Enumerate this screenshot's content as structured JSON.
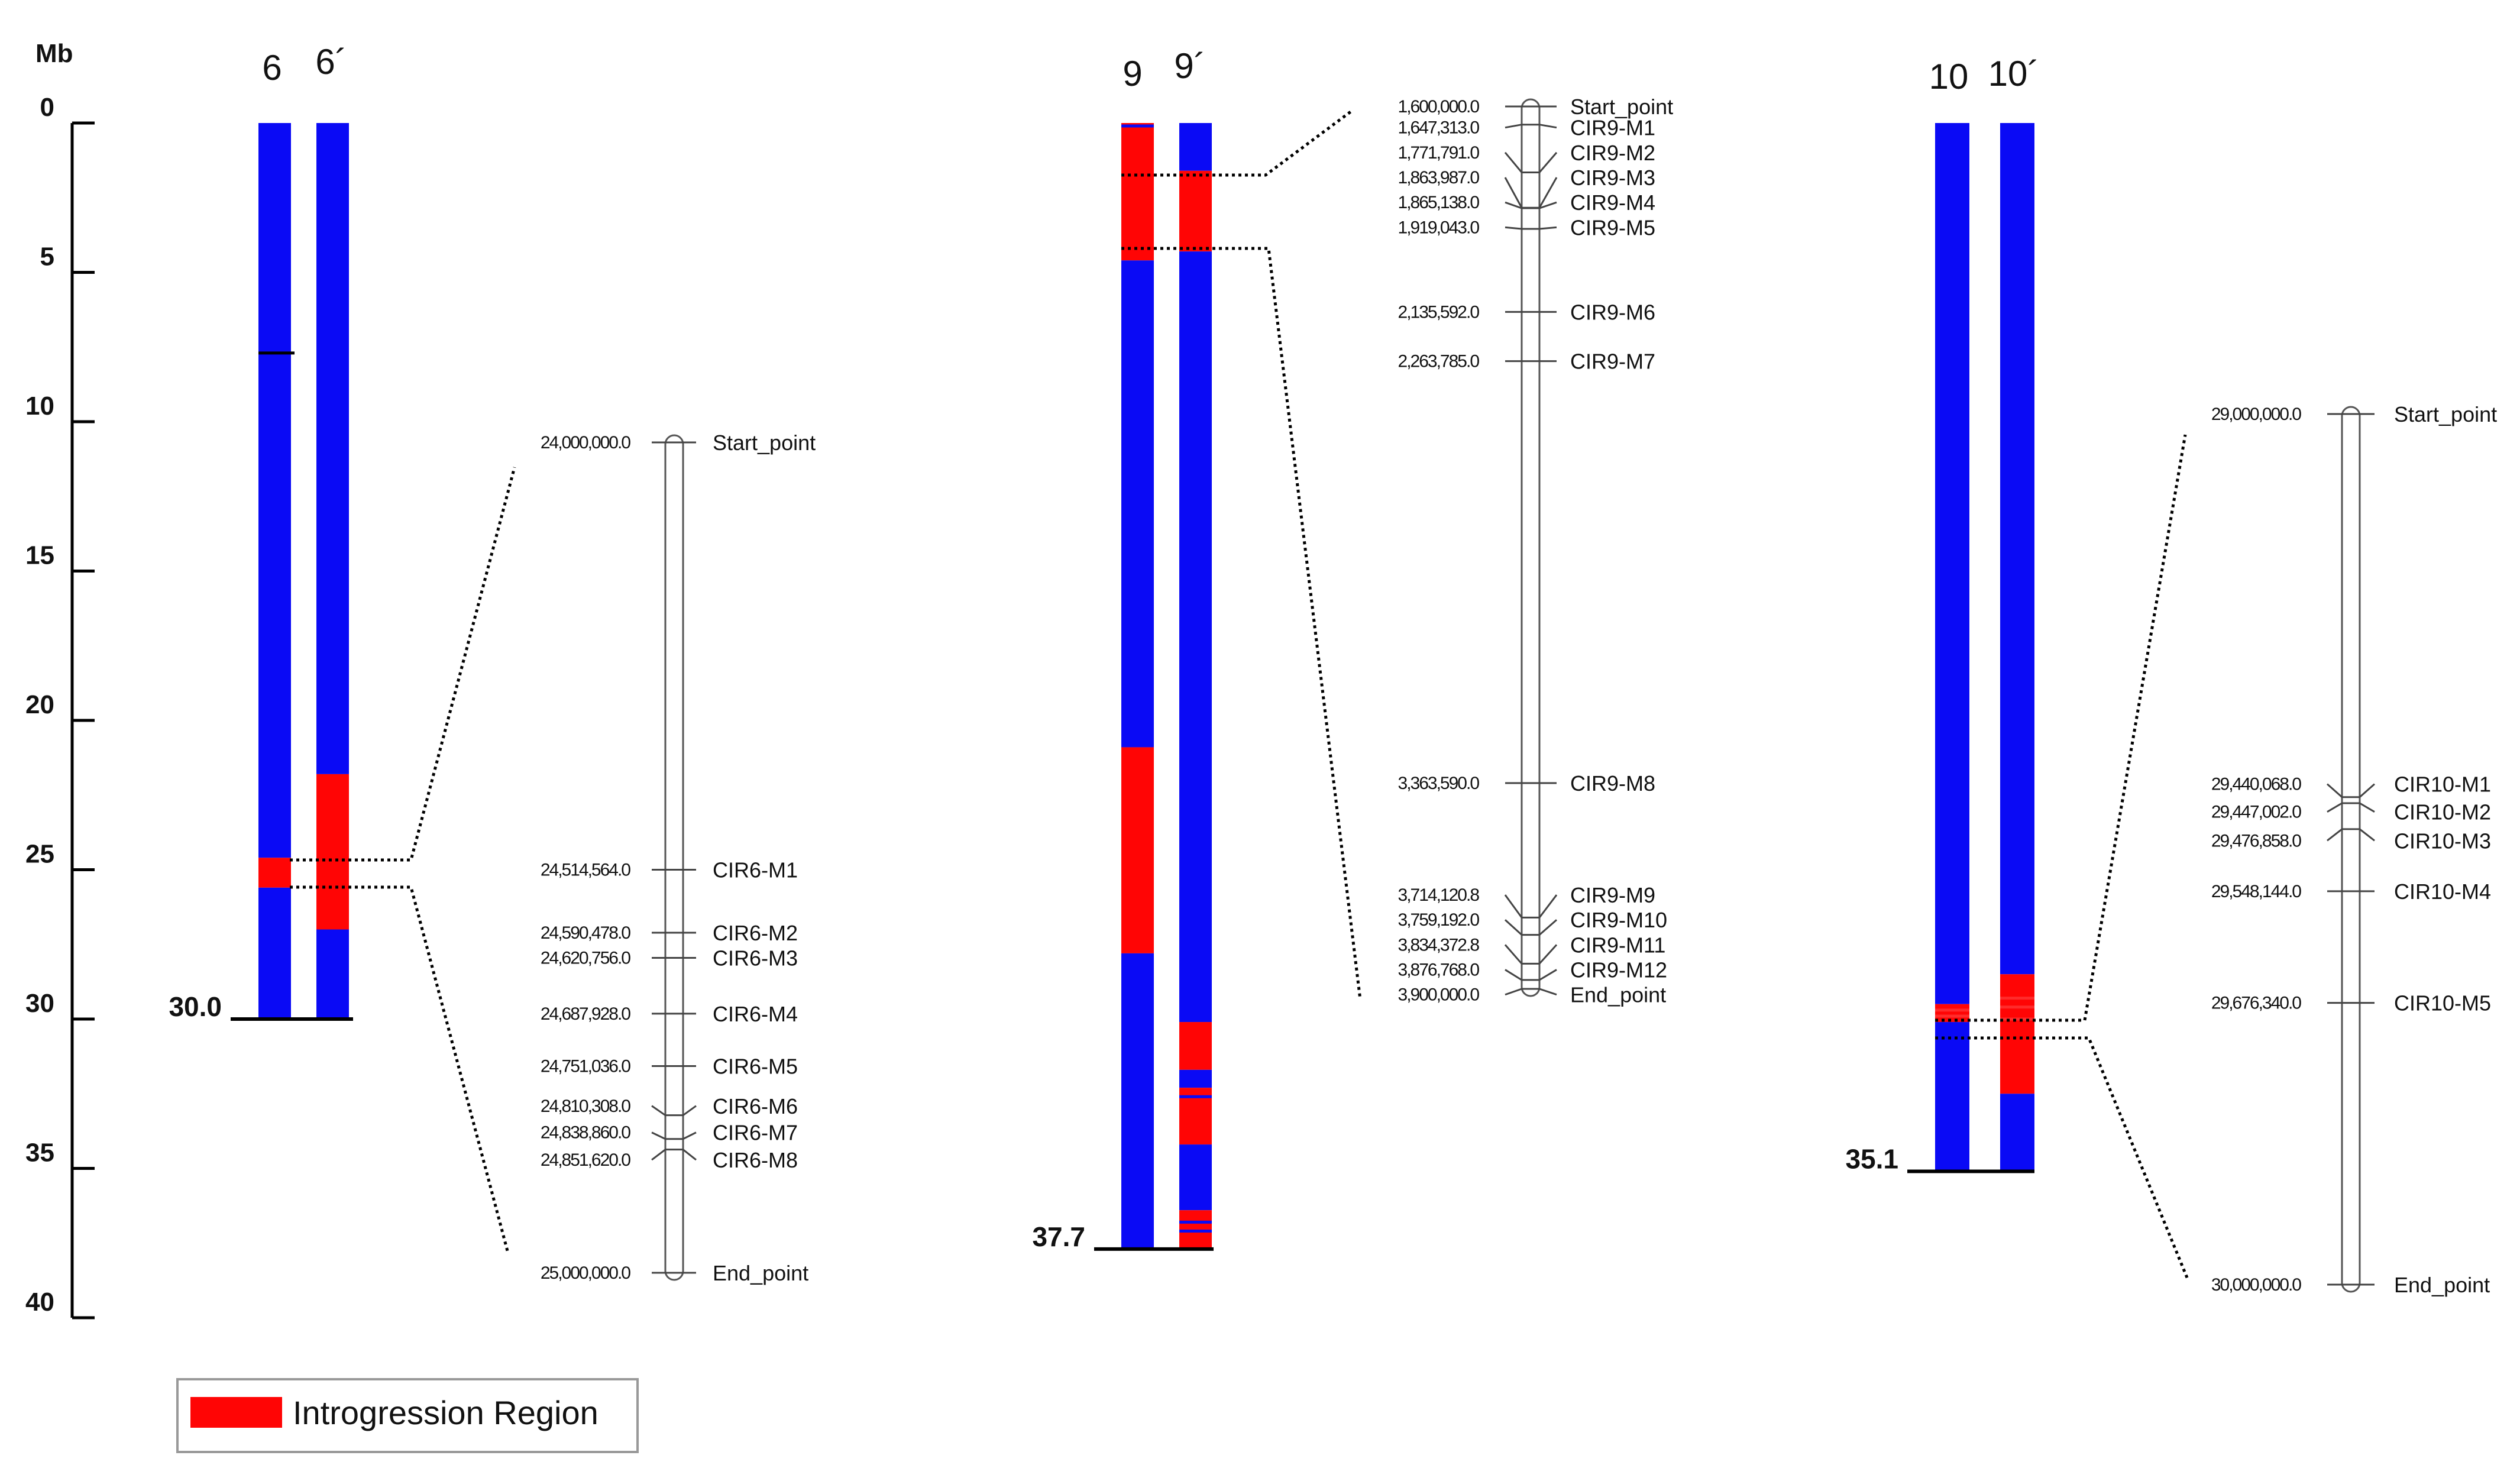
{
  "axis": {
    "unit": "Mb",
    "ticks": [
      0,
      5,
      10,
      15,
      20,
      25,
      30,
      35,
      40
    ]
  },
  "colors": {
    "background_bar": "#0a0af5",
    "introgression": "#ff0505",
    "line": "#000000",
    "overlay_line": "#ff2b2b"
  },
  "legend": {
    "label": "Introgression Region",
    "color": "#ff0505"
  },
  "chromosomes": [
    {
      "id": "6",
      "labels": [
        "6",
        "6´"
      ],
      "length_mb": 30.0,
      "length_label": "30.0",
      "bars": [
        {
          "label": "6",
          "segments": [
            [
              0,
              24.6,
              "blue"
            ],
            [
              24.6,
              25.6,
              "red"
            ],
            [
              25.6,
              30.0,
              "blue"
            ]
          ],
          "lines": [
            [
              7.7,
              "black"
            ]
          ]
        },
        {
          "label": "6´",
          "segments": [
            [
              0,
              21.8,
              "blue"
            ],
            [
              21.8,
              27.0,
              "red"
            ],
            [
              27.0,
              30.0,
              "blue"
            ]
          ],
          "lines": []
        }
      ],
      "zoom": {
        "from_mb": 24.6,
        "to_mb": 25.6,
        "start_pos": 24000000.0,
        "end_pos": 25000000.0,
        "markers": [
          {
            "pos": "24,000,000.0",
            "label": "Start_point",
            "v": 24000000.0,
            "vl": 24000000.0
          },
          {
            "pos": "24,514,564.0",
            "label": "CIR6-M1",
            "v": 24514564.0,
            "vl": 24514564.0
          },
          {
            "pos": "24,590,478.0",
            "label": "CIR6-M2",
            "v": 24590478.0,
            "vl": 24590478.0
          },
          {
            "pos": "24,620,756.0",
            "label": "CIR6-M3",
            "v": 24620756.0,
            "vl": 24620756.0
          },
          {
            "pos": "24,687,928.0",
            "label": "CIR6-M4",
            "v": 24687928.0,
            "vl": 24687928.0
          },
          {
            "pos": "24,751,036.0",
            "label": "CIR6-M5",
            "v": 24751036.0,
            "vl": 24751036.0
          },
          {
            "pos": "24,810,308.0",
            "label": "CIR6-M6",
            "v": 24810308.0,
            "vl": 24799000.0
          },
          {
            "pos": "24,838,860.0",
            "label": "CIR6-M7",
            "v": 24838860.0,
            "vl": 24831000.0
          },
          {
            "pos": "24,851,620.0",
            "label": "CIR6-M8",
            "v": 24851620.0,
            "vl": 24864000.0
          },
          {
            "pos": "25,000,000.0",
            "label": "End_point",
            "v": 25000000.0,
            "vl": 25000000.0
          }
        ]
      }
    },
    {
      "id": "9",
      "labels": [
        "9",
        "9´"
      ],
      "length_mb": 37.7,
      "length_label": "37.7",
      "bars": [
        {
          "label": "9",
          "segments": [
            [
              0,
              4.6,
              "red"
            ],
            [
              4.6,
              20.9,
              "blue"
            ],
            [
              20.9,
              27.8,
              "red"
            ],
            [
              27.8,
              37.7,
              "blue"
            ]
          ],
          "lines": [
            [
              0.1,
              "blue"
            ]
          ]
        },
        {
          "label": "9´",
          "segments": [
            [
              0,
              1.6,
              "blue"
            ],
            [
              1.6,
              4.3,
              "red"
            ],
            [
              4.3,
              30.1,
              "blue"
            ],
            [
              30.1,
              31.7,
              "red"
            ],
            [
              31.7,
              32.3,
              "blue"
            ],
            [
              32.3,
              34.2,
              "red"
            ],
            [
              34.2,
              36.4,
              "blue"
            ],
            [
              36.4,
              37.7,
              "red"
            ]
          ],
          "lines": [
            [
              32.6,
              "blue"
            ],
            [
              36.8,
              "blue"
            ],
            [
              37.1,
              "blue"
            ]
          ]
        }
      ],
      "zoom": {
        "from_mb": 1.6,
        "to_mb": 3.9,
        "start_pos": 1600000.0,
        "end_pos": 3900000.0,
        "markers": [
          {
            "pos": "1,600,000.0",
            "label": "Start_point",
            "v": 1600000.0,
            "vl": 1600000.0
          },
          {
            "pos": "1,647,313.0",
            "label": "CIR9-M1",
            "v": 1647313.0,
            "vl": 1655000.0
          },
          {
            "pos": "1,771,791.0",
            "label": "CIR9-M2",
            "v": 1771791.0,
            "vl": 1720000.0
          },
          {
            "pos": "1,863,987.0",
            "label": "CIR9-M3",
            "v": 1863987.0,
            "vl": 1785000.0
          },
          {
            "pos": "1,865,138.0",
            "label": "CIR9-M4",
            "v": 1865138.0,
            "vl": 1850000.0
          },
          {
            "pos": "1,919,043.0",
            "label": "CIR9-M5",
            "v": 1919043.0,
            "vl": 1915000.0
          },
          {
            "pos": "2,135,592.0",
            "label": "CIR9-M6",
            "v": 2135592.0,
            "vl": 2135592.0
          },
          {
            "pos": "2,263,785.0",
            "label": "CIR9-M7",
            "v": 2263785.0,
            "vl": 2263785.0
          },
          {
            "pos": "3,363,590.0",
            "label": "CIR9-M8",
            "v": 3363590.0,
            "vl": 3363590.0
          },
          {
            "pos": "3,714,120.8",
            "label": "CIR9-M9",
            "v": 3714120.8,
            "vl": 3655000.0
          },
          {
            "pos": "3,759,192.0",
            "label": "CIR9-M10",
            "v": 3759192.0,
            "vl": 3720000.0
          },
          {
            "pos": "3,834,372.8",
            "label": "CIR9-M11",
            "v": 3834372.8,
            "vl": 3785000.0
          },
          {
            "pos": "3,876,768.0",
            "label": "CIR9-M12",
            "v": 3876768.0,
            "vl": 3850000.0
          },
          {
            "pos": "3,900,000.0",
            "label": "End_point",
            "v": 3900000.0,
            "vl": 3915000.0
          }
        ]
      }
    },
    {
      "id": "10",
      "labels": [
        "10",
        "10´"
      ],
      "length_mb": 35.1,
      "length_label": "35.1",
      "bars": [
        {
          "label": "10",
          "segments": [
            [
              0,
              29.5,
              "blue"
            ],
            [
              29.5,
              30.1,
              "red"
            ],
            [
              30.1,
              35.1,
              "blue"
            ]
          ],
          "lines": [
            [
              29.7,
              "overlay"
            ],
            [
              29.9,
              "overlay"
            ]
          ]
        },
        {
          "label": "10´",
          "segments": [
            [
              0,
              28.5,
              "blue"
            ],
            [
              28.5,
              32.5,
              "red"
            ],
            [
              32.5,
              35.1,
              "blue"
            ]
          ],
          "lines": [
            [
              29.3,
              "overlay"
            ],
            [
              29.6,
              "overlay"
            ],
            [
              30.0,
              "overlay"
            ]
          ]
        }
      ],
      "zoom": {
        "from_mb": 29.5,
        "to_mb": 30.1,
        "start_pos": 29000000.0,
        "end_pos": 30000000.0,
        "markers": [
          {
            "pos": "29,000,000.0",
            "label": "Start_point",
            "v": 29000000.0,
            "vl": 29000000.0
          },
          {
            "pos": "29,440,068.0",
            "label": "CIR10-M1",
            "v": 29440068.0,
            "vl": 29425000.0
          },
          {
            "pos": "29,447,002.0",
            "label": "CIR10-M2",
            "v": 29447002.0,
            "vl": 29457000.0
          },
          {
            "pos": "29,476,858.0",
            "label": "CIR10-M3",
            "v": 29476858.0,
            "vl": 29490000.0
          },
          {
            "pos": "29,548,144.0",
            "label": "CIR10-M4",
            "v": 29548144.0,
            "vl": 29548144.0
          },
          {
            "pos": "29,676,340.0",
            "label": "CIR10-M5",
            "v": 29676340.0,
            "vl": 29676340.0
          },
          {
            "pos": "30,000,000.0",
            "label": "End_point",
            "v": 30000000.0,
            "vl": 30000000.0
          }
        ]
      }
    }
  ]
}
